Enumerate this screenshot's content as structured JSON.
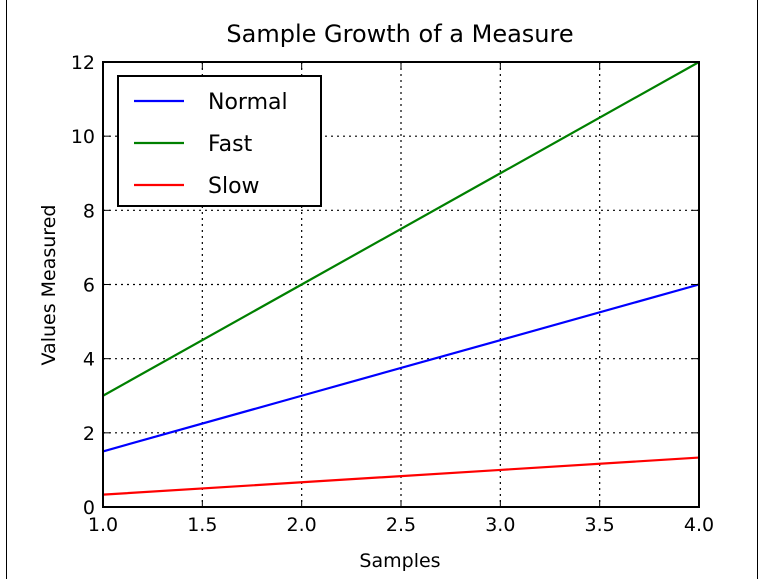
{
  "chart_data": {
    "type": "line",
    "title": "Sample Growth of a Measure",
    "xlabel": "Samples",
    "ylabel": "Values Measured",
    "xlim": [
      1.0,
      4.0
    ],
    "ylim": [
      0,
      12
    ],
    "xticks": [
      1.0,
      1.5,
      2.0,
      2.5,
      3.0,
      3.5,
      4.0
    ],
    "xtick_labels": [
      "1.0",
      "1.5",
      "2.0",
      "2.5",
      "3.0",
      "3.5",
      "4.0"
    ],
    "yticks": [
      0,
      2,
      4,
      6,
      8,
      10,
      12
    ],
    "ytick_labels": [
      "0",
      "2",
      "4",
      "6",
      "8",
      "10",
      "12"
    ],
    "grid": true,
    "legend_position": "top-left",
    "x": [
      1,
      2,
      3,
      4
    ],
    "series": [
      {
        "name": "Normal",
        "color": "#0000ff",
        "values": [
          1.5,
          3.0,
          4.5,
          6.0
        ]
      },
      {
        "name": "Fast",
        "color": "#008000",
        "values": [
          3.0,
          6.0,
          9.0,
          12.0
        ]
      },
      {
        "name": "Slow",
        "color": "#ff0000",
        "values": [
          0.333,
          0.667,
          1.0,
          1.333
        ]
      }
    ]
  }
}
